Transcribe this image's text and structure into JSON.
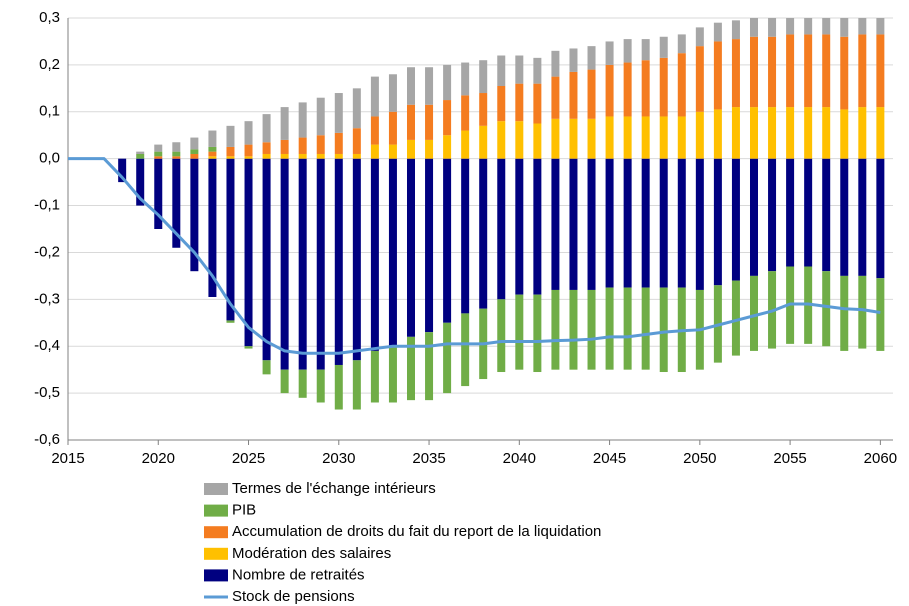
{
  "chart_data": {
    "type": "bar",
    "x": [
      2015,
      2016,
      2017,
      2018,
      2019,
      2020,
      2021,
      2022,
      2023,
      2024,
      2025,
      2026,
      2027,
      2028,
      2029,
      2030,
      2031,
      2032,
      2033,
      2034,
      2035,
      2036,
      2037,
      2038,
      2039,
      2040,
      2041,
      2042,
      2043,
      2044,
      2045,
      2046,
      2047,
      2048,
      2049,
      2050,
      2051,
      2052,
      2053,
      2054,
      2055,
      2056,
      2057,
      2058,
      2059,
      2060
    ],
    "xlim": [
      2015,
      2060.7
    ],
    "xticks": [
      2015,
      2020,
      2025,
      2030,
      2035,
      2040,
      2045,
      2050,
      2055,
      2060
    ],
    "ylim": [
      -0.6,
      0.3
    ],
    "yticks": [
      {
        "value": 0.3,
        "label": "0,3"
      },
      {
        "value": 0.2,
        "label": "0,2"
      },
      {
        "value": 0.1,
        "label": "0,1"
      },
      {
        "value": 0,
        "label": "0,0"
      },
      {
        "value": -0.1,
        "label": "-0,1"
      },
      {
        "value": -0.2,
        "label": "-0,2"
      },
      {
        "value": -0.3,
        "label": "-0,3"
      },
      {
        "value": -0.4,
        "label": "-0,4"
      },
      {
        "value": -0.5,
        "label": "-0,5"
      },
      {
        "value": -0.6,
        "label": "-0,6"
      }
    ],
    "grid": true,
    "stacked": true,
    "series": [
      {
        "name": "Termes de l'échange intérieurs",
        "color": "#a6a6a6",
        "values": [
          0,
          0,
          0,
          0,
          0.005,
          0.015,
          0.02,
          0.025,
          0.035,
          0.045,
          0.05,
          0.06,
          0.07,
          0.075,
          0.08,
          0.085,
          0.085,
          0.085,
          0.08,
          0.08,
          0.08,
          0.075,
          0.07,
          0.07,
          0.065,
          0.06,
          0.055,
          0.055,
          0.05,
          0.05,
          0.05,
          0.05,
          0.045,
          0.045,
          0.04,
          0.04,
          0.04,
          0.04,
          0.04,
          0.04,
          0.035,
          0.035,
          0.035,
          0.04,
          0.035,
          0.035
        ]
      },
      {
        "name": "PIB",
        "color": "#70ad47",
        "values": [
          0,
          0,
          0,
          0,
          0.01,
          0.01,
          0.01,
          0.01,
          0.01,
          -0.005,
          -0.005,
          -0.03,
          -0.05,
          -0.06,
          -0.07,
          -0.095,
          -0.105,
          -0.11,
          -0.12,
          -0.135,
          -0.145,
          -0.15,
          -0.155,
          -0.15,
          -0.155,
          -0.16,
          -0.165,
          -0.17,
          -0.17,
          -0.17,
          -0.175,
          -0.175,
          -0.175,
          -0.18,
          -0.18,
          -0.17,
          -0.165,
          -0.16,
          -0.16,
          -0.165,
          -0.165,
          -0.165,
          -0.16,
          -0.16,
          -0.155,
          -0.155
        ]
      },
      {
        "name": "Accumulation de droits du fait du report de la liquidation",
        "color": "#f47c20",
        "values": [
          0,
          0,
          0,
          0,
          0,
          0.005,
          0.005,
          0.01,
          0.01,
          0.02,
          0.025,
          0.025,
          0.03,
          0.035,
          0.04,
          0.045,
          0.055,
          0.06,
          0.07,
          0.075,
          0.075,
          0.075,
          0.075,
          0.07,
          0.075,
          0.08,
          0.085,
          0.09,
          0.1,
          0.105,
          0.11,
          0.115,
          0.12,
          0.125,
          0.135,
          0.14,
          0.145,
          0.145,
          0.15,
          0.15,
          0.155,
          0.155,
          0.155,
          0.155,
          0.155,
          0.155
        ]
      },
      {
        "name": "Modération des salaires",
        "color": "#ffc000",
        "values": [
          0,
          0,
          0,
          0,
          0,
          0,
          0,
          0,
          0.005,
          0.005,
          0.005,
          0.01,
          0.01,
          0.01,
          0.01,
          0.01,
          0.01,
          0.03,
          0.03,
          0.04,
          0.04,
          0.05,
          0.06,
          0.07,
          0.08,
          0.08,
          0.075,
          0.085,
          0.085,
          0.085,
          0.09,
          0.09,
          0.09,
          0.09,
          0.09,
          0.1,
          0.105,
          0.11,
          0.11,
          0.11,
          0.11,
          0.11,
          0.11,
          0.105,
          0.11,
          0.11
        ]
      },
      {
        "name": "Nombre de retraités",
        "color": "#000080",
        "values": [
          0,
          0,
          0,
          -0.05,
          -0.1,
          -0.15,
          -0.19,
          -0.24,
          -0.295,
          -0.345,
          -0.4,
          -0.43,
          -0.45,
          -0.45,
          -0.45,
          -0.44,
          -0.43,
          -0.41,
          -0.4,
          -0.38,
          -0.37,
          -0.35,
          -0.33,
          -0.32,
          -0.3,
          -0.29,
          -0.29,
          -0.28,
          -0.28,
          -0.28,
          -0.275,
          -0.275,
          -0.275,
          -0.275,
          -0.275,
          -0.28,
          -0.27,
          -0.26,
          -0.25,
          -0.24,
          -0.23,
          -0.23,
          -0.24,
          -0.25,
          -0.25,
          -0.255
        ]
      },
      {
        "name": "Stock de pensions",
        "color": "#5b9bd5",
        "type": "line",
        "values": [
          0,
          0,
          0,
          -0.04,
          -0.085,
          -0.12,
          -0.16,
          -0.2,
          -0.25,
          -0.31,
          -0.36,
          -0.39,
          -0.41,
          -0.415,
          -0.415,
          -0.415,
          -0.41,
          -0.405,
          -0.4,
          -0.4,
          -0.4,
          -0.395,
          -0.395,
          -0.395,
          -0.39,
          -0.39,
          -0.39,
          -0.388,
          -0.387,
          -0.385,
          -0.38,
          -0.38,
          -0.375,
          -0.37,
          -0.367,
          -0.365,
          -0.355,
          -0.345,
          -0.335,
          -0.325,
          -0.31,
          -0.31,
          -0.315,
          -0.32,
          -0.322,
          -0.328
        ]
      }
    ]
  }
}
